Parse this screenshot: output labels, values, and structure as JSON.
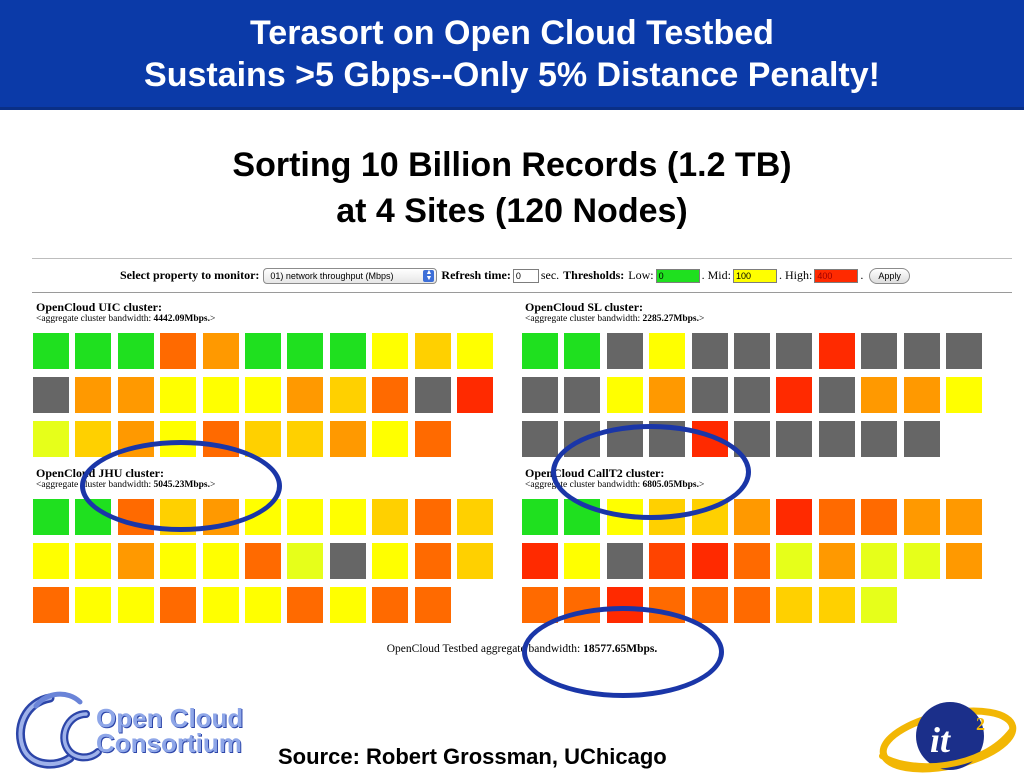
{
  "slide": {
    "title_line1": "Terasort on Open Cloud Testbed",
    "title_line2": "Sustains >5 Gbps--Only 5% Distance Penalty!",
    "subtitle_line1": "Sorting 10 Billion Records (1.2 TB)",
    "subtitle_line2": "at 4 Sites (120 Nodes)",
    "source": "Source: Robert Grossman, UChicago",
    "logo_text_line1": "Open Cloud",
    "logo_text_line2": "Consortium",
    "logo_mark": "OCC",
    "it2_logo": "it",
    "it2_superscript": "2"
  },
  "controls": {
    "select_label": "Select property to monitor:",
    "select_value": "01) network throughput (Mbps)",
    "refresh_label": "Refresh time:",
    "refresh_value": "0",
    "refresh_unit": "sec.",
    "thresholds_label": "Thresholds:",
    "low_label": "Low:",
    "low_value": "0",
    "mid_label": ". Mid:",
    "mid_value": "100",
    "high_label": ". High:",
    "high_value": "400",
    "trailing_dot": ".",
    "apply_label": "Apply"
  },
  "colors": {
    "banner": "#0b3aa8",
    "low": "#1fe01f",
    "mid": "#ffff00",
    "high": "#ff2a00",
    "idle": "#666666",
    "ellipse": "#1a36a8"
  },
  "clusters": [
    {
      "name": "OpenCloud UIC cluster:",
      "bw_prefix": "<aggregate cluster bandwidth: ",
      "bw_value": "4442.09Mbps.",
      "bw_suffix": ">",
      "cells": [
        "g",
        "g",
        "g",
        "O",
        "o",
        "g",
        "g",
        "g",
        "y",
        "a",
        "y",
        "x",
        "o",
        "o",
        "y",
        "y",
        "y",
        "o",
        "a",
        "O",
        "x",
        "r",
        "l",
        "a",
        "o",
        "y",
        "O",
        "a",
        "a",
        "o",
        "y",
        "O"
      ]
    },
    {
      "name": "OpenCloud SL cluster:",
      "bw_prefix": "<aggregate cluster bandwidth: ",
      "bw_value": "2285.27Mbps.",
      "bw_suffix": ">",
      "cells": [
        "g",
        "g",
        "x",
        "y",
        "x",
        "x",
        "x",
        "r",
        "x",
        "x",
        "x",
        "x",
        "x",
        "y",
        "o",
        "x",
        "x",
        "r",
        "x",
        "o",
        "o",
        "y",
        "x",
        "x",
        "x",
        "x",
        "r",
        "x",
        "x",
        "x",
        "x",
        "x"
      ]
    },
    {
      "name": "OpenCloud JHU cluster:",
      "bw_prefix": "<aggregate cluster bandwidth: ",
      "bw_value": "5045.23Mbps.",
      "bw_suffix": ">",
      "cells": [
        "g",
        "g",
        "O",
        "a",
        "o",
        "y",
        "y",
        "y",
        "a",
        "O",
        "a",
        "y",
        "y",
        "o",
        "y",
        "y",
        "O",
        "l",
        "x",
        "y",
        "O",
        "a",
        "O",
        "y",
        "y",
        "O",
        "y",
        "y",
        "O",
        "y",
        "O",
        "O"
      ]
    },
    {
      "name": "OpenCloud CallT2 cluster:",
      "bw_prefix": "<aggregate cluster bandwidth: ",
      "bw_value": "6805.05Mbps.",
      "bw_suffix": ">",
      "cells": [
        "g",
        "g",
        "y",
        "a",
        "a",
        "o",
        "r",
        "O",
        "O",
        "o",
        "o",
        "r",
        "y",
        "x",
        "d",
        "r",
        "O",
        "l",
        "o",
        "l",
        "l",
        "o",
        "O",
        "O",
        "r",
        "O",
        "O",
        "O",
        "a",
        "a",
        "l"
      ]
    }
  ],
  "aggregate": {
    "prefix": "OpenCloud Testbed aggregate bandwidth: ",
    "value": "18577.65Mbps."
  }
}
